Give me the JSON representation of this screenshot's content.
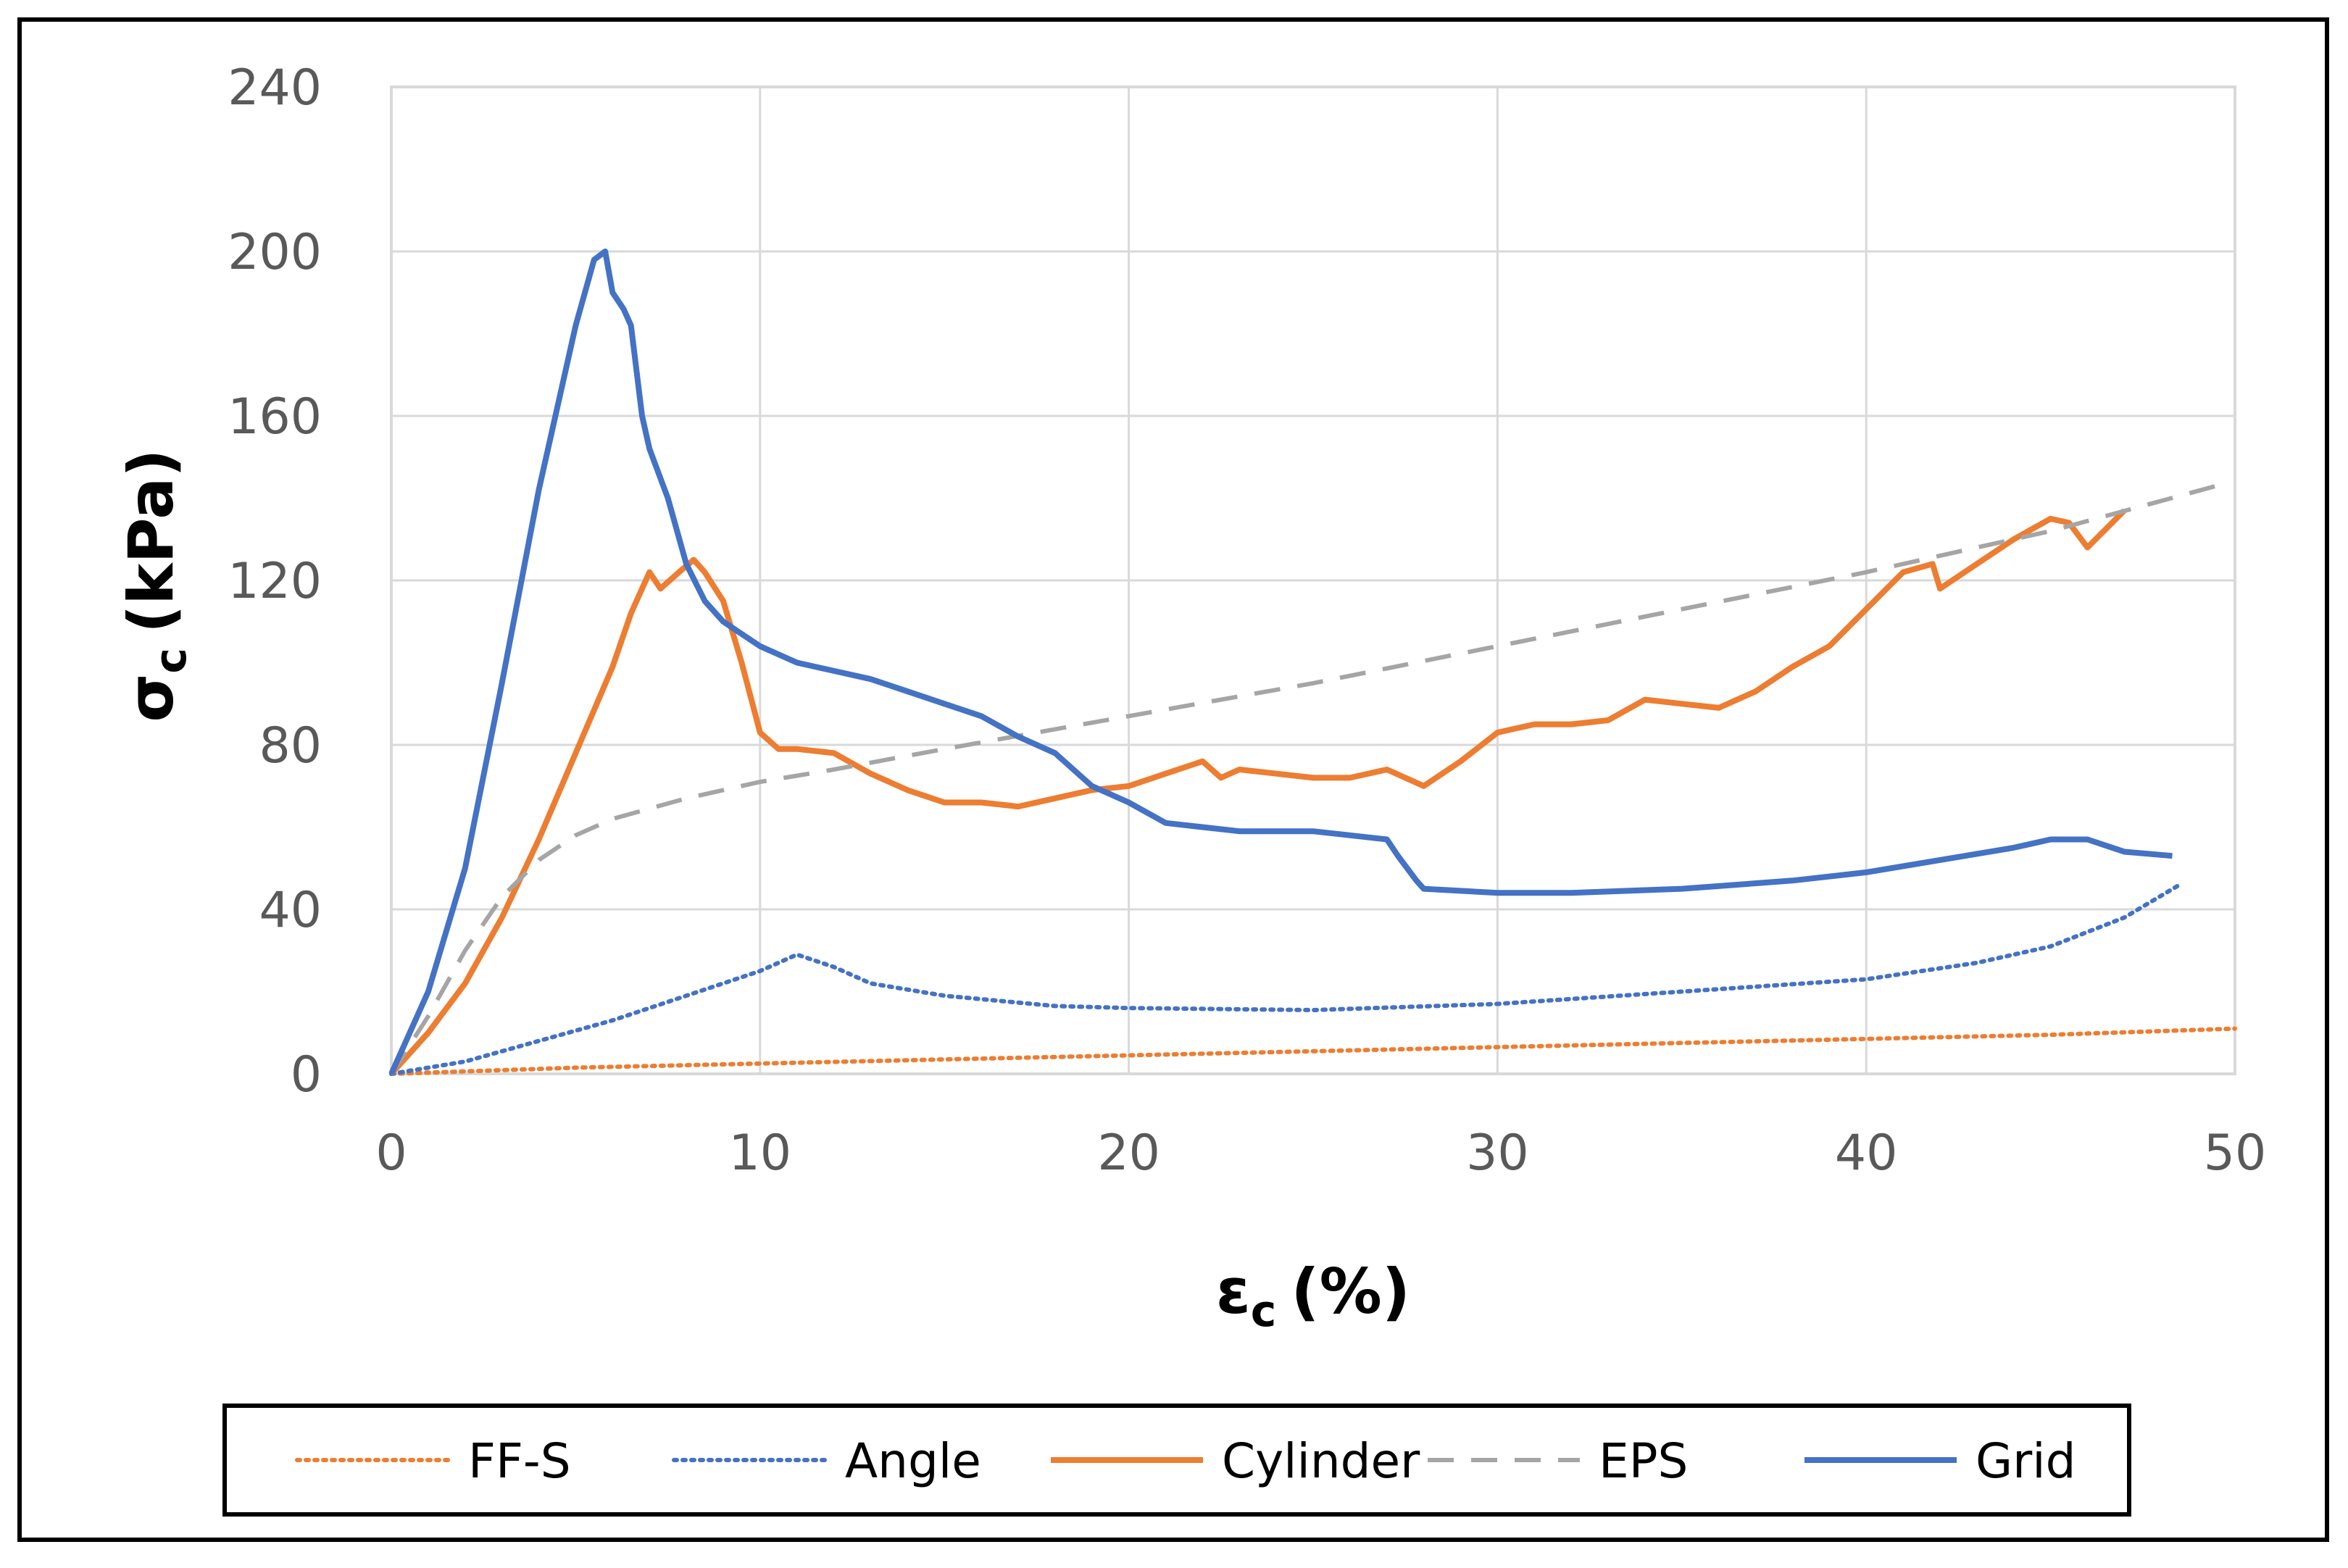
{
  "chart_data": {
    "type": "line",
    "title": "",
    "xlabel": {
      "symbol": "ε",
      "sub": "c",
      "unit": "(%)"
    },
    "ylabel": {
      "symbol": "σ",
      "sub": "c",
      "unit": "(kPa)"
    },
    "xlim": [
      0,
      50
    ],
    "ylim": [
      0,
      240
    ],
    "xticks": [
      0,
      10,
      20,
      30,
      40,
      50
    ],
    "yticks": [
      0,
      40,
      80,
      120,
      160,
      200,
      240
    ],
    "grid": true,
    "legend_position": "bottom",
    "series": [
      {
        "name": "FF-S",
        "color": "#ED7D31",
        "style": "dotted",
        "x": [
          0,
          5,
          10,
          15,
          20,
          25,
          30,
          35,
          40,
          45,
          50
        ],
        "y": [
          0,
          1.5,
          2.5,
          3.5,
          4.5,
          5.5,
          6.5,
          7.5,
          8.5,
          9.5,
          11
        ]
      },
      {
        "name": "Angle",
        "color": "#4472C4",
        "style": "dotted",
        "x": [
          0,
          2,
          4,
          6,
          8,
          10,
          11,
          12,
          13,
          15,
          18,
          20,
          25,
          30,
          35,
          40,
          43,
          45,
          47,
          48.5
        ],
        "y": [
          0,
          3,
          8,
          13,
          19,
          25,
          29,
          26,
          22,
          19,
          16.5,
          16,
          15.5,
          17,
          20,
          23,
          27,
          31,
          38,
          46
        ]
      },
      {
        "name": "Cylinder",
        "color": "#ED7D31",
        "style": "solid",
        "x": [
          0,
          1,
          2,
          3,
          4,
          5,
          6,
          6.5,
          7,
          7.3,
          7.8,
          8.2,
          8.5,
          9,
          9.5,
          10,
          10.5,
          11,
          12,
          13,
          14,
          15,
          16,
          17,
          18,
          19,
          20,
          21,
          22,
          22.5,
          23,
          24,
          25,
          26,
          27,
          28,
          29,
          30,
          31,
          32,
          33,
          34,
          35,
          36,
          37,
          38,
          39,
          40,
          41,
          41.8,
          42,
          43,
          44,
          45,
          45.5,
          46,
          47
        ],
        "y": [
          0,
          10,
          22,
          38,
          57,
          78,
          99,
          112,
          122,
          118,
          122,
          125,
          122,
          115,
          100,
          83,
          79,
          79,
          78,
          73,
          69,
          66,
          66,
          65,
          67,
          69,
          70,
          73,
          76,
          72,
          74,
          73,
          72,
          72,
          74,
          70,
          76,
          83,
          85,
          85,
          86,
          91,
          90,
          89,
          93,
          99,
          104,
          113,
          122,
          124,
          118,
          124,
          130,
          135,
          134,
          128,
          137
        ]
      },
      {
        "name": "EPS",
        "color": "#A5A5A5",
        "style": "dashed",
        "x": [
          0,
          1,
          2,
          3,
          4,
          5,
          6,
          8,
          10,
          12,
          15,
          20,
          25,
          30,
          35,
          40,
          45,
          49.5
        ],
        "y": [
          0,
          14,
          30,
          43,
          52,
          58,
          62,
          67,
          71,
          74,
          79,
          87,
          95,
          104,
          113,
          122,
          132,
          143
        ]
      },
      {
        "name": "Grid",
        "color": "#4472C4",
        "style": "solid",
        "x": [
          0,
          1,
          2,
          3,
          4,
          5,
          5.5,
          5.8,
          6,
          6.3,
          6.5,
          6.8,
          7,
          7.5,
          8,
          8.5,
          9,
          10,
          11,
          12,
          13,
          14,
          15,
          16,
          17,
          18,
          19,
          20,
          21,
          22,
          23,
          24,
          25,
          26,
          27,
          27.3,
          27.8,
          28,
          30,
          32,
          35,
          38,
          40,
          42,
          44,
          45,
          46,
          47,
          48.3
        ],
        "y": [
          0,
          20,
          50,
          95,
          142,
          182,
          198,
          200,
          190,
          186,
          182,
          160,
          152,
          140,
          124,
          115,
          110,
          104,
          100,
          98,
          96,
          93,
          90,
          87,
          82,
          78,
          70,
          66,
          61,
          60,
          59,
          59,
          59,
          58,
          57,
          53,
          47,
          45,
          44,
          44,
          45,
          47,
          49,
          52,
          55,
          57,
          57,
          54,
          53
        ]
      }
    ]
  }
}
